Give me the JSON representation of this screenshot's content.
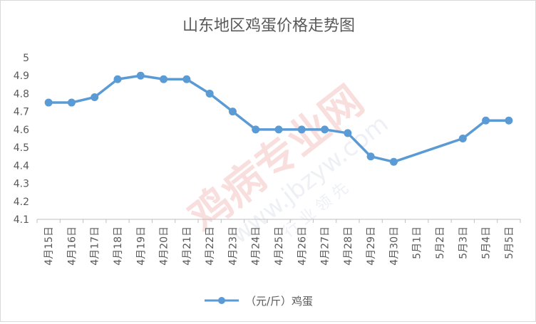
{
  "chart_data": {
    "type": "line",
    "title": "山东地区鸡蛋价格走势图",
    "categories": [
      "4月15日",
      "4月16日",
      "4月17日",
      "4月18日",
      "4月19日",
      "4月20日",
      "4月21日",
      "4月22日",
      "4月23日",
      "4月24日",
      "4月25日",
      "4月26日",
      "4月27日",
      "4月28日",
      "4月29日",
      "4月30日",
      "5月1日",
      "5月2日",
      "5月3日",
      "5月4日",
      "5月5日"
    ],
    "series": [
      {
        "name": "（元/斤）鸡蛋",
        "color": "#5b9bd5",
        "values": [
          4.75,
          4.75,
          4.78,
          4.88,
          4.9,
          4.88,
          4.88,
          4.8,
          4.7,
          4.6,
          4.6,
          4.6,
          4.6,
          4.58,
          4.45,
          4.42,
          null,
          null,
          4.55,
          4.65,
          4.65
        ]
      }
    ],
    "yticks": [
      "4.1",
      "4.2",
      "4.3",
      "4.4",
      "4.5",
      "4.6",
      "4.7",
      "4.8",
      "4.9",
      "5"
    ],
    "ylim": [
      4.1,
      5
    ],
    "grid": false,
    "legend_position": "bottom",
    "connect_gaps": true
  },
  "watermark": {
    "text_main": "鸡病专业网",
    "text_url": "www.jbzyw.com",
    "text_sub": "行 业 领 先"
  }
}
